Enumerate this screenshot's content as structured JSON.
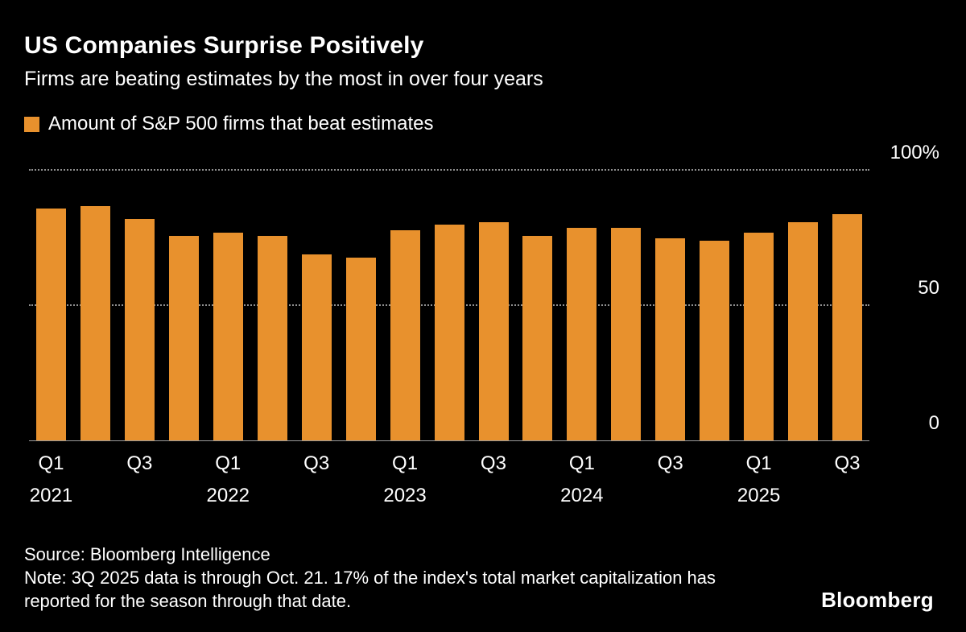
{
  "header": {
    "title": "US Companies Surprise Positively",
    "subtitle": "Firms are beating estimates by the most in over four years"
  },
  "legend": {
    "label": "Amount of S&P 500 firms that beat estimates",
    "color": "#E8912D"
  },
  "chart_data": {
    "type": "bar",
    "title": "US Companies Surprise Positively",
    "series_name": "Amount of S&P 500 firms that beat estimates",
    "unit": "%",
    "categories": [
      "Q1 2021",
      "Q2 2021",
      "Q3 2021",
      "Q4 2021",
      "Q1 2022",
      "Q2 2022",
      "Q3 2022",
      "Q4 2022",
      "Q1 2023",
      "Q2 2023",
      "Q3 2023",
      "Q4 2023",
      "Q1 2024",
      "Q2 2024",
      "Q3 2024",
      "Q4 2024",
      "Q1 2025",
      "Q2 2025",
      "Q3 2025"
    ],
    "values": [
      86,
      87,
      82,
      76,
      77,
      76,
      69,
      68,
      78,
      80,
      81,
      76,
      79,
      79,
      75,
      74,
      77,
      81,
      84
    ],
    "ylim": [
      0,
      100
    ],
    "yticks": [
      {
        "value": 100,
        "label": "100%"
      },
      {
        "value": 50,
        "label": "50"
      },
      {
        "value": 0,
        "label": "0"
      }
    ],
    "xticks": [
      {
        "index": 0,
        "label": "Q1",
        "year": "2021"
      },
      {
        "index": 2,
        "label": "Q3",
        "year": ""
      },
      {
        "index": 4,
        "label": "Q1",
        "year": "2022"
      },
      {
        "index": 6,
        "label": "Q3",
        "year": ""
      },
      {
        "index": 8,
        "label": "Q1",
        "year": "2023"
      },
      {
        "index": 10,
        "label": "Q3",
        "year": ""
      },
      {
        "index": 12,
        "label": "Q1",
        "year": "2024"
      },
      {
        "index": 14,
        "label": "Q3",
        "year": ""
      },
      {
        "index": 16,
        "label": "Q1",
        "year": "2025"
      },
      {
        "index": 18,
        "label": "Q3",
        "year": ""
      }
    ],
    "bar_color": "#E8912D",
    "background_color": "#000000",
    "grid": "horizontal dotted",
    "legend_position": "top-left",
    "y_axis_position": "right"
  },
  "footer": {
    "source": "Source: Bloomberg Intelligence",
    "note": "Note: 3Q 2025 data is through Oct. 21. 17% of the index's total market capitalization has reported for the season through that date.",
    "logo": "Bloomberg"
  }
}
